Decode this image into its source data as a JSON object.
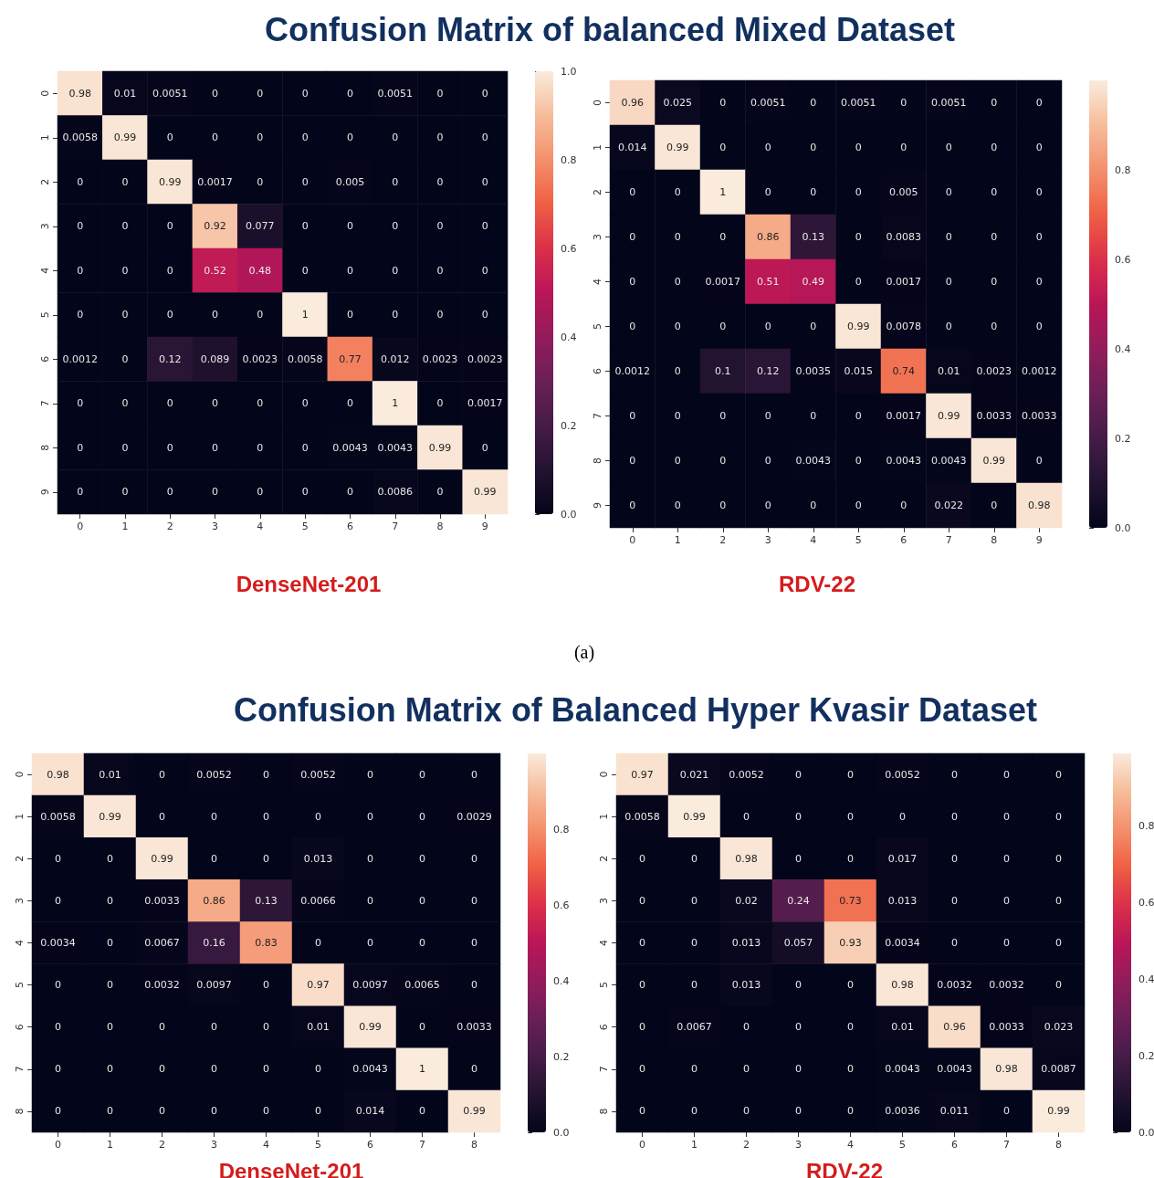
{
  "chart_data": [
    {
      "type": "heatmap",
      "title": "Confusion Matrix of balanced Mixed Dataset",
      "xlabel": "DenseNet-201",
      "annotations": [
        "(a)"
      ],
      "categories": [
        "0",
        "1",
        "2",
        "3",
        "4",
        "5",
        "6",
        "7",
        "8",
        "9"
      ],
      "y_categories": [
        "0",
        "1",
        "2",
        "3",
        "4",
        "5",
        "6",
        "7",
        "8",
        "9"
      ],
      "cells": [
        [
          0.98,
          0.01,
          0.0051,
          0,
          0,
          0,
          0,
          0.0051,
          0,
          0
        ],
        [
          0.0058,
          0.99,
          0,
          0,
          0,
          0,
          0,
          0,
          0,
          0
        ],
        [
          0,
          0,
          0.99,
          0.0017,
          0,
          0,
          0.005,
          0,
          0,
          0
        ],
        [
          0,
          0,
          0,
          0.92,
          0.077,
          0,
          0,
          0,
          0,
          0
        ],
        [
          0,
          0,
          0,
          0.52,
          0.48,
          0,
          0,
          0,
          0,
          0
        ],
        [
          0,
          0,
          0,
          0,
          0,
          1,
          0,
          0,
          0,
          0
        ],
        [
          0.0012,
          0,
          0.12,
          0.089,
          0.0023,
          0.0058,
          0.77,
          0.012,
          0.0023,
          0.0023
        ],
        [
          0,
          0,
          0,
          0,
          0,
          0,
          0,
          1,
          0,
          0.0017
        ],
        [
          0,
          0,
          0,
          0,
          0,
          0,
          0.0043,
          0.0043,
          0.99,
          0
        ],
        [
          0,
          0,
          0,
          0,
          0,
          0,
          0,
          0.0086,
          0,
          0.99
        ]
      ],
      "clim": [
        0,
        1
      ],
      "cticks": [
        {
          "value": 0,
          "label": "0.0"
        },
        {
          "value": 0.2,
          "label": "0.2"
        },
        {
          "value": 0.4,
          "label": "0.4"
        },
        {
          "value": 0.6,
          "label": "0.6"
        },
        {
          "value": 0.8,
          "label": "0.8"
        },
        {
          "value": 1,
          "label": "1.0"
        }
      ],
      "data_labels": true
    },
    {
      "type": "heatmap",
      "xlabel": "RDV-22",
      "categories": [
        "0",
        "1",
        "2",
        "3",
        "4",
        "5",
        "6",
        "7",
        "8",
        "9"
      ],
      "y_categories": [
        "0",
        "1",
        "2",
        "3",
        "4",
        "5",
        "6",
        "7",
        "8",
        "9"
      ],
      "cells": [
        [
          0.96,
          0.025,
          0,
          0.0051,
          0,
          0.0051,
          0,
          0.0051,
          0,
          0
        ],
        [
          0.014,
          0.99,
          0,
          0,
          0,
          0,
          0,
          0,
          0,
          0
        ],
        [
          0,
          0,
          1,
          0,
          0,
          0,
          0.005,
          0,
          0,
          0
        ],
        [
          0,
          0,
          0,
          0.86,
          0.13,
          0,
          0.0083,
          0,
          0,
          0
        ],
        [
          0,
          0,
          0.0017,
          0.51,
          0.49,
          0,
          0.0017,
          0,
          0,
          0
        ],
        [
          0,
          0,
          0,
          0,
          0,
          0.99,
          0.0078,
          0,
          0,
          0
        ],
        [
          0.0012,
          0,
          0.1,
          0.12,
          0.0035,
          0.015,
          0.74,
          0.01,
          0.0023,
          0.0012
        ],
        [
          0,
          0,
          0,
          0,
          0,
          0,
          0.0017,
          0.99,
          0.0033,
          0.0033
        ],
        [
          0,
          0,
          0,
          0,
          0.0043,
          0,
          0.0043,
          0.0043,
          0.99,
          0
        ],
        [
          0,
          0,
          0,
          0,
          0,
          0,
          0,
          0.022,
          0,
          0.98
        ]
      ],
      "clim": [
        0,
        1
      ],
      "cticks": [
        {
          "value": 0,
          "label": "0.0"
        },
        {
          "value": 0.2,
          "label": "0.2"
        },
        {
          "value": 0.4,
          "label": "0.4"
        },
        {
          "value": 0.6,
          "label": "0.6"
        },
        {
          "value": 0.8,
          "label": "0.8"
        }
      ],
      "data_labels": true
    },
    {
      "type": "heatmap",
      "title": "Confusion Matrix of Balanced Hyper Kvasir Dataset",
      "xlabel": "DenseNet-201",
      "categories": [
        "0",
        "1",
        "2",
        "3",
        "4",
        "5",
        "6",
        "7",
        "8"
      ],
      "y_categories": [
        "0",
        "1",
        "2",
        "3",
        "4",
        "5",
        "6",
        "7",
        "8"
      ],
      "cells": [
        [
          0.98,
          0.01,
          0,
          0.0052,
          0,
          0.0052,
          0,
          0,
          0
        ],
        [
          0.0058,
          0.99,
          0,
          0,
          0,
          0,
          0,
          0,
          0.0029
        ],
        [
          0,
          0,
          0.99,
          0,
          0,
          0.013,
          0,
          0,
          0
        ],
        [
          0,
          0,
          0.0033,
          0.86,
          0.13,
          0.0066,
          0,
          0,
          0
        ],
        [
          0.0034,
          0,
          0.0067,
          0.16,
          0.83,
          0,
          0,
          0,
          0
        ],
        [
          0,
          0,
          0.0032,
          0.0097,
          0,
          0.97,
          0.0097,
          0.0065,
          0
        ],
        [
          0,
          0,
          0,
          0,
          0,
          0.01,
          0.99,
          0,
          0.0033
        ],
        [
          0,
          0,
          0,
          0,
          0,
          0,
          0.0043,
          1,
          0
        ],
        [
          0,
          0,
          0,
          0,
          0,
          0,
          0.014,
          0,
          0.99
        ]
      ],
      "clim": [
        0,
        1
      ],
      "cticks": [
        {
          "value": 0,
          "label": "0.0"
        },
        {
          "value": 0.2,
          "label": "0.2"
        },
        {
          "value": 0.4,
          "label": "0.4"
        },
        {
          "value": 0.6,
          "label": "0.6"
        },
        {
          "value": 0.8,
          "label": "0.8"
        }
      ],
      "data_labels": true
    },
    {
      "type": "heatmap",
      "xlabel": "RDV-22",
      "categories": [
        "0",
        "1",
        "2",
        "3",
        "4",
        "5",
        "6",
        "7",
        "8"
      ],
      "y_categories": [
        "0",
        "1",
        "2",
        "3",
        "4",
        "5",
        "6",
        "7",
        "8"
      ],
      "cells": [
        [
          0.97,
          0.021,
          0.0052,
          0,
          0,
          0.0052,
          0,
          0,
          0
        ],
        [
          0.0058,
          0.99,
          0,
          0,
          0,
          0,
          0,
          0,
          0
        ],
        [
          0,
          0,
          0.98,
          0,
          0,
          0.017,
          0,
          0,
          0
        ],
        [
          0,
          0,
          0.02,
          0.24,
          0.73,
          0.013,
          0,
          0,
          0
        ],
        [
          0,
          0,
          0.013,
          0.057,
          0.93,
          0.0034,
          0,
          0,
          0
        ],
        [
          0,
          0,
          0.013,
          0,
          0,
          0.98,
          0.0032,
          0.0032,
          0
        ],
        [
          0,
          0.0067,
          0,
          0,
          0,
          0.01,
          0.96,
          0.0033,
          0.023
        ],
        [
          0,
          0,
          0,
          0,
          0,
          0.0043,
          0.0043,
          0.98,
          0.0087
        ],
        [
          0,
          0,
          0,
          0,
          0,
          0.0036,
          0.011,
          0,
          0.99
        ]
      ],
      "clim": [
        0,
        0.99
      ],
      "cticks": [
        {
          "value": 0,
          "label": "0.0"
        },
        {
          "value": 0.2,
          "label": "0.2"
        },
        {
          "value": 0.4,
          "label": "0.4"
        },
        {
          "value": 0.6,
          "label": "0.6"
        },
        {
          "value": 0.8,
          "label": "0.8"
        }
      ],
      "data_labels": true
    }
  ]
}
